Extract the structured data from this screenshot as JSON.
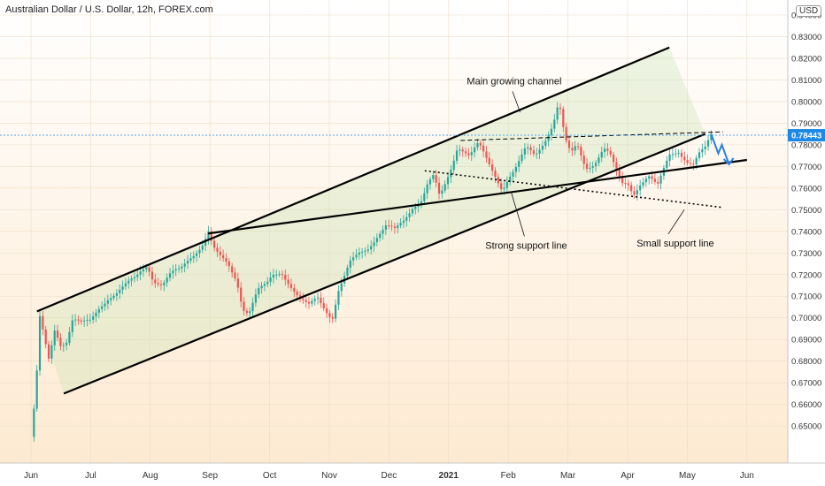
{
  "chart_data": {
    "type": "line",
    "title": "Australian Dollar / U.S. Dollar, 12h, FOREX.com",
    "currency_label": "USD",
    "price_tag": "0.78443",
    "ylim": [
      0.64,
      0.84
    ],
    "y_ticks": [
      "0.65000",
      "0.66000",
      "0.67000",
      "0.68000",
      "0.69000",
      "0.70000",
      "0.71000",
      "0.72000",
      "0.73000",
      "0.74000",
      "0.75000",
      "0.76000",
      "0.77000",
      "0.78000",
      "0.79000",
      "0.80000",
      "0.81000",
      "0.82000",
      "0.83000",
      "0.84000"
    ],
    "x_ticks": [
      {
        "label": "Jun",
        "month": 0
      },
      {
        "label": "Jul",
        "month": 1
      },
      {
        "label": "Aug",
        "month": 2
      },
      {
        "label": "Sep",
        "month": 3
      },
      {
        "label": "Oct",
        "month": 4
      },
      {
        "label": "Nov",
        "month": 5
      },
      {
        "label": "Dec",
        "month": 6
      },
      {
        "label": "2021",
        "month": 7,
        "bold": true
      },
      {
        "label": "Feb",
        "month": 8
      },
      {
        "label": "Mar",
        "month": 9
      },
      {
        "label": "Apr",
        "month": 10
      },
      {
        "label": "May",
        "month": 11
      },
      {
        "label": "Jun",
        "month": 12
      }
    ],
    "series": [
      {
        "values": [
          [
            0.0,
            0.645
          ],
          [
            0.08,
            0.665
          ],
          [
            0.15,
            0.7
          ],
          [
            0.22,
            0.69
          ],
          [
            0.3,
            0.68
          ],
          [
            0.4,
            0.695
          ],
          [
            0.5,
            0.688
          ],
          [
            0.6,
            0.69
          ],
          [
            0.7,
            0.7
          ],
          [
            0.85,
            0.697
          ],
          [
            1.0,
            0.698
          ],
          [
            1.15,
            0.705
          ],
          [
            1.3,
            0.71
          ],
          [
            1.45,
            0.712
          ],
          [
            1.6,
            0.715
          ],
          [
            1.75,
            0.718
          ],
          [
            1.85,
            0.722
          ],
          [
            1.95,
            0.725
          ],
          [
            2.05,
            0.718
          ],
          [
            2.2,
            0.715
          ],
          [
            2.35,
            0.72
          ],
          [
            2.5,
            0.722
          ],
          [
            2.65,
            0.728
          ],
          [
            2.8,
            0.732
          ],
          [
            2.9,
            0.735
          ],
          [
            2.97,
            0.74
          ],
          [
            3.05,
            0.732
          ],
          [
            3.15,
            0.728
          ],
          [
            3.3,
            0.725
          ],
          [
            3.45,
            0.718
          ],
          [
            3.55,
            0.705
          ],
          [
            3.65,
            0.702
          ],
          [
            3.8,
            0.712
          ],
          [
            3.95,
            0.715
          ],
          [
            4.05,
            0.72
          ],
          [
            4.2,
            0.722
          ],
          [
            4.35,
            0.715
          ],
          [
            4.5,
            0.708
          ],
          [
            4.65,
            0.705
          ],
          [
            4.8,
            0.71
          ],
          [
            4.95,
            0.704
          ],
          [
            5.05,
            0.7
          ],
          [
            5.15,
            0.712
          ],
          [
            5.25,
            0.718
          ],
          [
            5.35,
            0.725
          ],
          [
            5.5,
            0.73
          ],
          [
            5.65,
            0.733
          ],
          [
            5.8,
            0.738
          ],
          [
            5.95,
            0.742
          ],
          [
            6.1,
            0.74
          ],
          [
            6.25,
            0.745
          ],
          [
            6.4,
            0.752
          ],
          [
            6.55,
            0.755
          ],
          [
            6.65,
            0.762
          ],
          [
            6.75,
            0.765
          ],
          [
            6.85,
            0.755
          ],
          [
            6.95,
            0.762
          ],
          [
            7.05,
            0.77
          ],
          [
            7.15,
            0.78
          ],
          [
            7.25,
            0.778
          ],
          [
            7.35,
            0.775
          ],
          [
            7.5,
            0.78
          ],
          [
            7.65,
            0.772
          ],
          [
            7.8,
            0.765
          ],
          [
            7.9,
            0.76
          ],
          [
            8.0,
            0.765
          ],
          [
            8.15,
            0.77
          ],
          [
            8.3,
            0.778
          ],
          [
            8.45,
            0.775
          ],
          [
            8.6,
            0.782
          ],
          [
            8.75,
            0.79
          ],
          [
            8.85,
            0.8
          ],
          [
            8.95,
            0.782
          ],
          [
            9.05,
            0.775
          ],
          [
            9.15,
            0.78
          ],
          [
            9.3,
            0.77
          ],
          [
            9.45,
            0.772
          ],
          [
            9.6,
            0.778
          ],
          [
            9.7,
            0.775
          ],
          [
            9.8,
            0.768
          ],
          [
            9.9,
            0.762
          ],
          [
            10.0,
            0.763
          ],
          [
            10.1,
            0.758
          ],
          [
            10.2,
            0.762
          ],
          [
            10.35,
            0.765
          ],
          [
            10.5,
            0.76
          ],
          [
            10.6,
            0.768
          ],
          [
            10.7,
            0.776
          ],
          [
            10.85,
            0.778
          ],
          [
            11.0,
            0.772
          ],
          [
            11.1,
            0.77
          ],
          [
            11.2,
            0.775
          ],
          [
            11.3,
            0.778
          ],
          [
            11.4,
            0.785
          ]
        ]
      }
    ],
    "projection": [
      [
        11.4,
        0.785
      ],
      [
        11.52,
        0.776
      ],
      [
        11.58,
        0.78
      ],
      [
        11.7,
        0.771
      ]
    ],
    "lines": {
      "channel_upper": [
        [
          0.1,
          0.703
        ],
        [
          10.7,
          0.825
        ]
      ],
      "channel_lower": [
        [
          0.55,
          0.665
        ],
        [
          11.3,
          0.785
        ]
      ],
      "strong_support": [
        [
          2.97,
          0.739
        ],
        [
          12.0,
          0.773
        ]
      ],
      "small_support": [
        [
          6.6,
          0.768
        ],
        [
          11.6,
          0.751
        ]
      ],
      "resistance": [
        [
          7.2,
          0.782
        ],
        [
          11.6,
          0.786
        ]
      ]
    },
    "annotations": [
      {
        "text": "Main growing channel",
        "x": 8.1,
        "y": 0.808
      },
      {
        "text": "Strong support line",
        "x": 8.3,
        "y": 0.732
      },
      {
        "text": "Small support line",
        "x": 10.8,
        "y": 0.733
      }
    ]
  }
}
